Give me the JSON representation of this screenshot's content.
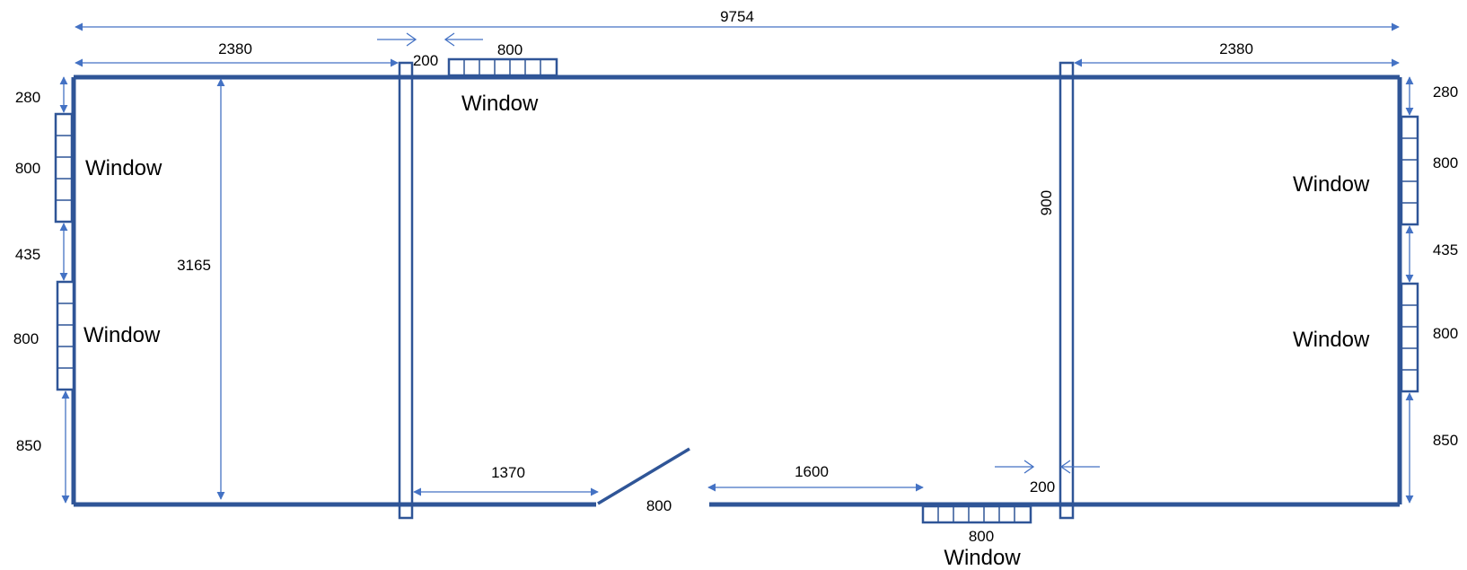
{
  "diagram": {
    "colors": {
      "wall": "#2f5597",
      "dimension": "#4472c4",
      "text": "#000000"
    },
    "dimensions": {
      "overall_width": "9754",
      "left_room_width": "2380",
      "right_room_width": "2380",
      "partition_gap_top": "200",
      "partition_gap_bottom": "200",
      "top_window_width": "800",
      "bottom_window_width": "800",
      "left_top_offset": "280",
      "left_window1": "800",
      "left_between": "435",
      "left_window2": "800",
      "left_bottom_offset": "850",
      "right_top_offset": "280",
      "right_window1": "800",
      "right_between": "435",
      "right_window2": "800",
      "right_bottom_offset": "850",
      "room_height": "3165",
      "partition_label": "900",
      "bottom_left_segment": "1370",
      "door_width": "800",
      "bottom_right_segment": "1600"
    },
    "window_labels": {
      "top": "Window",
      "left_upper": "Window",
      "left_lower": "Window",
      "right_upper": "Window",
      "right_lower": "Window",
      "bottom": "Window"
    }
  }
}
